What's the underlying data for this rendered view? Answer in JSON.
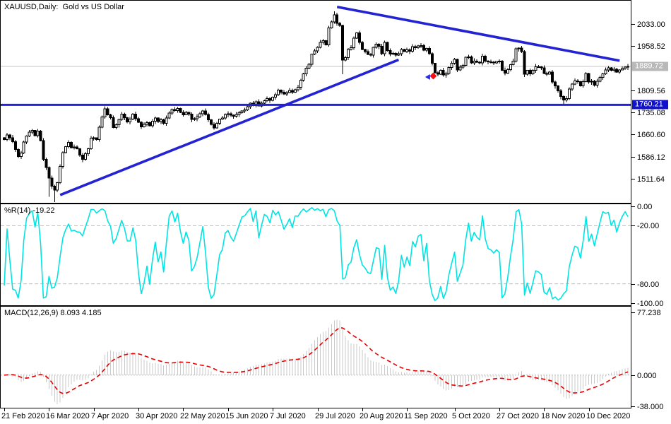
{
  "window": {
    "title": "XAUUSD,Daily:  Gold vs US Dollar"
  },
  "colors": {
    "background": "#ffffff",
    "panel_border": "#000000",
    "candle_outline": "#000000",
    "candle_up_fill": "#ffffff",
    "candle_down_fill": "#000000",
    "trendline_blue": "#2323d3",
    "hline_blue": "#2323d3",
    "hline_badge_bg": "#1112cc",
    "current_price_line": "#c6c6c6",
    "current_price_badge_bg": "#b9b9b9",
    "badge_text": "#ffffff",
    "wpr_line_cyan": "#00e4e4",
    "level_dash_gray": "#bbbbbb",
    "macd_histogram_gray": "#c9c9c9",
    "macd_signal_red": "#e60000",
    "axis_text": "#000000",
    "marker_red": "#ee1111",
    "marker_blue": "#2a2ae0"
  },
  "chart_data": {
    "type": "candlestick",
    "symbol": "XAUUSD",
    "timeframe": "Daily",
    "title": "XAUUSD,Daily:  Gold vs US Dollar",
    "price_axis": {
      "tick_labels": [
        2033.0,
        1958.52,
        1809.56,
        1735.08,
        1660.6,
        1586.12,
        1511.64
      ],
      "ylim": [
        1430.6,
        2110.8
      ],
      "current_price": "1889.72",
      "hline_price": "1760.21"
    },
    "x_axis": {
      "tick_labels": [
        "21 Feb 2020",
        "16 Mar 2020",
        "7 Apr 2020",
        "30 Apr 2020",
        "22 May 2020",
        "15 Jun 2020",
        "7 Jul 2020",
        "29 Jul 2020",
        "20 Aug 2020",
        "11 Sep 2020",
        "5 Oct 2020",
        "27 Oct 2020",
        "18 Nov 2020",
        "10 Dec 2020"
      ],
      "tick_indices": [
        0,
        16,
        32,
        48,
        64,
        80,
        96,
        112,
        128,
        144,
        161,
        177,
        193,
        209
      ]
    },
    "candles": {
      "count": 224,
      "first_open": 1650,
      "closes": [
        1643,
        1659,
        1650,
        1636,
        1610,
        1586,
        1598,
        1635,
        1655,
        1668,
        1674,
        1657,
        1672,
        1640,
        1577,
        1550,
        1514,
        1486,
        1474,
        1498,
        1553,
        1600,
        1620,
        1634,
        1616,
        1618,
        1612,
        1591,
        1577,
        1596,
        1613,
        1648,
        1649,
        1644,
        1685,
        1720,
        1747,
        1727,
        1717,
        1684,
        1693,
        1711,
        1729,
        1717,
        1703,
        1713,
        1729,
        1714,
        1702,
        1686,
        1694,
        1701,
        1690,
        1705,
        1716,
        1704,
        1710,
        1698,
        1716,
        1733,
        1745,
        1741,
        1748,
        1735,
        1727,
        1735,
        1729,
        1711,
        1714,
        1720,
        1730,
        1740,
        1728,
        1710,
        1694,
        1683,
        1698,
        1712,
        1716,
        1728,
        1730,
        1725,
        1722,
        1728,
        1734,
        1740,
        1743,
        1754,
        1766,
        1758,
        1771,
        1757,
        1766,
        1774,
        1781,
        1776,
        1786,
        1794,
        1810,
        1803,
        1797,
        1802,
        1809,
        1803,
        1811,
        1820,
        1843,
        1865,
        1884,
        1897,
        1931,
        1942,
        1954,
        1970,
        1976,
        1962,
        2019,
        2039,
        2063,
        2035,
        2028,
        1911,
        1919,
        1947,
        1953,
        1985,
        2002,
        1970,
        1947,
        1940,
        1930,
        1928,
        1954,
        1964,
        1957,
        1932,
        1970,
        1943,
        1931,
        1934,
        1928,
        1932,
        1947,
        1940,
        1946,
        1941,
        1956,
        1953,
        1959,
        1960,
        1944,
        1950,
        1932,
        1900,
        1868,
        1863,
        1876,
        1861,
        1866,
        1886,
        1900,
        1913,
        1878,
        1887,
        1893,
        1921,
        1922,
        1901,
        1908,
        1904,
        1902,
        1924,
        1908,
        1905,
        1904,
        1902,
        1906,
        1907,
        1877,
        1867,
        1879,
        1895,
        1908,
        1949,
        1951,
        1940,
        1863,
        1876,
        1865,
        1876,
        1889,
        1888,
        1885,
        1866,
        1864,
        1871,
        1837,
        1824,
        1807,
        1788,
        1777,
        1781,
        1814,
        1830,
        1841,
        1838,
        1824,
        1838,
        1866,
        1837,
        1840,
        1827,
        1840,
        1853,
        1865,
        1878,
        1885,
        1876,
        1880,
        1871,
        1878,
        1883,
        1887,
        1889.72
      ],
      "high_overrides": {
        "118": 2075
      },
      "low_overrides": {
        "16": 1451,
        "18": 1433,
        "121": 1863,
        "200": 1764
      }
    },
    "overlays": {
      "trendlines": [
        {
          "name": "ascending-trendline",
          "from_index": 20,
          "from_price": 1457,
          "to_index": 141,
          "to_price": 1912
        },
        {
          "name": "descending-trendline",
          "from_index": 119,
          "from_price": 2090,
          "to_index": 220,
          "to_price": 1909
        }
      ],
      "hline_price": 1760.21,
      "current_price": 1889.72,
      "marker": {
        "index": 153,
        "price": 1861,
        "type": "sell-signal"
      }
    },
    "indicators": [
      {
        "id": "wpr",
        "label": "%R(14) -19.22",
        "period": 14,
        "current_value": -19.22,
        "range": [
          0,
          -100
        ],
        "tick_levels": [
          0,
          -20,
          -80,
          -100
        ],
        "dashed_levels": [
          -20,
          -80
        ]
      },
      {
        "id": "macd",
        "label": "MACD(12,26,9) 8.093 4.185",
        "fast": 12,
        "slow": 26,
        "signal": 9,
        "current_macd": 8.093,
        "current_signal": 4.185,
        "tick_levels": [
          77.238,
          0,
          -38
        ],
        "ylim": [
          -38,
          77.238
        ]
      }
    ]
  }
}
